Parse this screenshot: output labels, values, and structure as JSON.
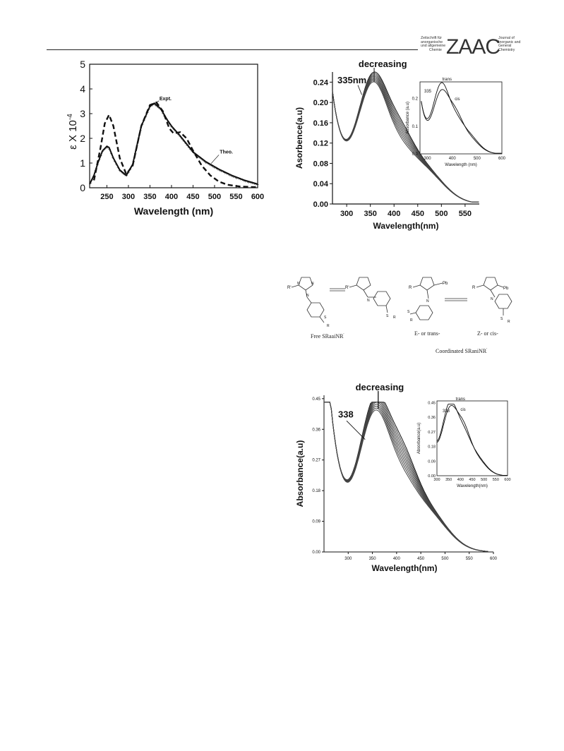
{
  "header": {
    "journal_left": [
      "Zeitschrift für",
      "anorganische",
      "und allgemeine",
      "Chemie"
    ],
    "journal_abbrev": "ZAAC",
    "journal_right": [
      "Journal of",
      "Inorganic and",
      "General",
      "Chemistry"
    ]
  },
  "chart_data": [
    {
      "type": "line",
      "title": "",
      "xlabel": "Wavelength  (nm)",
      "ylabel": "ε X 10",
      "ylabel_exp": "-4",
      "xlim": [
        210,
        600
      ],
      "ylim": [
        0,
        5
      ],
      "xticks": [
        250,
        300,
        350,
        400,
        450,
        500,
        550,
        600
      ],
      "yticks": [
        0,
        1,
        2,
        3,
        4,
        5
      ],
      "annotations": [
        "Expt.",
        "Theo."
      ],
      "series": [
        {
          "name": "Expt.",
          "style": "marker-line",
          "x": [
            210,
            220,
            230,
            240,
            250,
            255,
            265,
            280,
            295,
            310,
            330,
            350,
            360,
            375,
            390,
            400,
            420,
            450,
            480,
            510,
            540,
            570,
            600
          ],
          "y": [
            0.15,
            0.5,
            1.05,
            1.5,
            1.68,
            1.63,
            1.2,
            0.72,
            0.5,
            0.95,
            2.5,
            3.3,
            3.42,
            3.2,
            2.75,
            2.5,
            2.1,
            1.45,
            1.05,
            0.75,
            0.5,
            0.3,
            0.15
          ]
        },
        {
          "name": "Theo.",
          "style": "dashed",
          "x": [
            220,
            235,
            245,
            255,
            265,
            280,
            295,
            310,
            330,
            350,
            365,
            380,
            395,
            405,
            420,
            435,
            450,
            470,
            490,
            510,
            530,
            560,
            600
          ],
          "y": [
            0.3,
            1.6,
            2.6,
            2.95,
            2.5,
            1.2,
            0.55,
            0.9,
            2.5,
            3.35,
            3.45,
            3.1,
            2.4,
            2.2,
            2.25,
            2.0,
            1.5,
            0.9,
            0.5,
            0.25,
            0.12,
            0.05,
            0.02
          ]
        }
      ]
    },
    {
      "type": "line",
      "title": "decreasing",
      "xlabel": "Wavelength(nm)",
      "ylabel": "Asorbence(a.u)",
      "xlim": [
        270,
        580
      ],
      "ylim": [
        0,
        0.26
      ],
      "xticks": [
        300,
        350,
        400,
        450,
        500,
        550
      ],
      "yticks": [
        0.0,
        0.04,
        0.08,
        0.12,
        0.16,
        0.2,
        0.24
      ],
      "annotations": [
        "335nm"
      ],
      "series_count": 8,
      "peak_base": 0.23,
      "peak_top": 0.245,
      "inset": {
        "xlabel": "Wavelength (nm)",
        "ylabel": "Absorbance (a.u)",
        "xlim": [
          270,
          600
        ],
        "ylim": [
          0,
          0.26
        ],
        "xticks": [
          300,
          400,
          500,
          600
        ],
        "yticks": [
          0.0,
          0.1,
          0.2
        ],
        "labels": [
          "335",
          "trans",
          "cis"
        ]
      }
    },
    {
      "type": "line",
      "title": "decreasing",
      "xlabel": "Wavelength(nm)",
      "ylabel": "Absorbance(a.u)",
      "xlim": [
        250,
        600
      ],
      "ylim": [
        0,
        0.46
      ],
      "xticks": [
        300,
        350,
        400,
        450,
        500,
        550,
        600
      ],
      "yticks": [
        "0.00",
        "0.09",
        "0.18",
        "0.27",
        "0.36",
        "0.45"
      ],
      "annotations": [
        "338"
      ],
      "series_count": 9,
      "peak_base": 0.38,
      "peak_top": 0.415,
      "inset": {
        "xlabel": "Wavelength(nm)",
        "ylabel": "Absorbance(a.u)",
        "xlim": [
          300,
          600
        ],
        "ylim": [
          0,
          0.46
        ],
        "xticks": [
          300,
          350,
          400,
          450,
          500,
          550,
          600
        ],
        "yticks": [
          "0.00",
          "0.09",
          "0.18",
          "0.27",
          "0.36",
          "0.45"
        ],
        "labels": [
          "338",
          "trans",
          "cis"
        ]
      }
    }
  ],
  "scheme": {
    "free_label": "Free SRaaiNR",
    "free_sup": "'",
    "coord_label": "Coordinated SRaniNR",
    "coord_sup": "'",
    "e_label": "E- or trans-",
    "z_label": "Z- or cis-",
    "atoms": {
      "N": "N",
      "R": "R",
      "Rp": "R'",
      "S": "S",
      "Pb": "Pb"
    }
  }
}
